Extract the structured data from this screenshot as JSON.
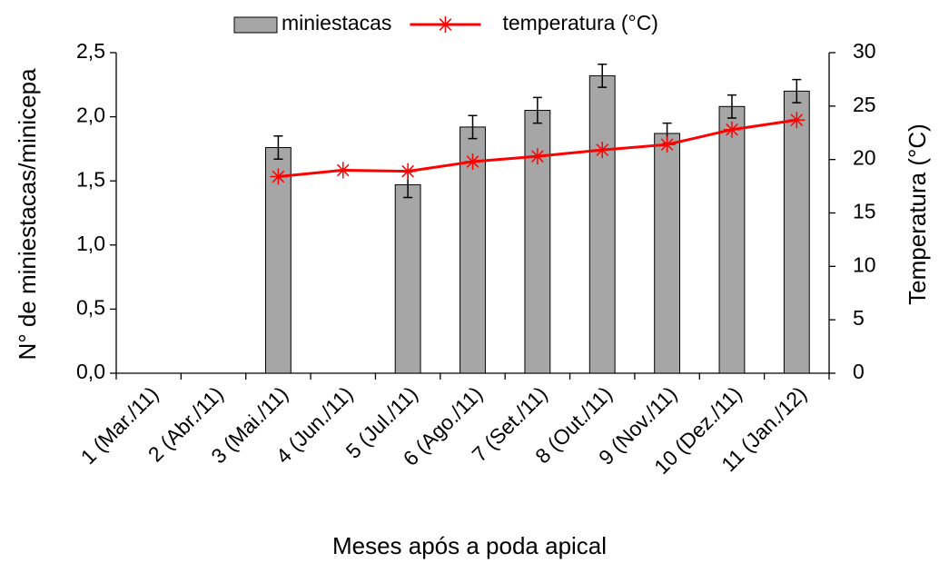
{
  "chart_data": {
    "type": "bar_line",
    "xlabel": "Meses após a poda apical",
    "ylabel": "N° de miniestacas/minicepa",
    "y2label": "Temperatura (°C)",
    "categories": [
      "1 (Mar./11)",
      "2 (Abr./11)",
      "3 (Mai./11)",
      "4 (Jun./11)",
      "5 (Jul./11)",
      "6 (Ago./11)",
      "7 (Set./11)",
      "8 (Out./11)",
      "9 (Nov./11)",
      "10 (Dez./11)",
      "11 (Jan./12)"
    ],
    "series": [
      {
        "name": "miniestacas",
        "type": "bar",
        "color": "#a6a6a6",
        "values": [
          null,
          null,
          1.76,
          null,
          1.47,
          1.92,
          2.05,
          2.32,
          1.87,
          2.08,
          2.2
        ],
        "errors": [
          null,
          null,
          0.09,
          null,
          0.1,
          0.09,
          0.1,
          0.09,
          0.08,
          0.09,
          0.09
        ]
      },
      {
        "name": "temperatura (°C)",
        "type": "line",
        "axis": "y2",
        "color": "#ff0000",
        "values": [
          null,
          null,
          18.4,
          19.0,
          18.9,
          19.8,
          20.3,
          20.9,
          21.4,
          22.8,
          23.7
        ]
      }
    ],
    "ylim": [
      0,
      2.5
    ],
    "yticks": [
      {
        "value": 0,
        "label": "0,0"
      },
      {
        "value": 0.5,
        "label": "0,5"
      },
      {
        "value": 1,
        "label": "1,0"
      },
      {
        "value": 1.5,
        "label": "1,5"
      },
      {
        "value": 2,
        "label": "2,0"
      },
      {
        "value": 2.5,
        "label": "2,5"
      }
    ],
    "y2lim": [
      0,
      30
    ],
    "y2ticks": [
      0,
      5,
      10,
      15,
      20,
      25,
      30
    ],
    "grid": false,
    "legend": "top"
  }
}
